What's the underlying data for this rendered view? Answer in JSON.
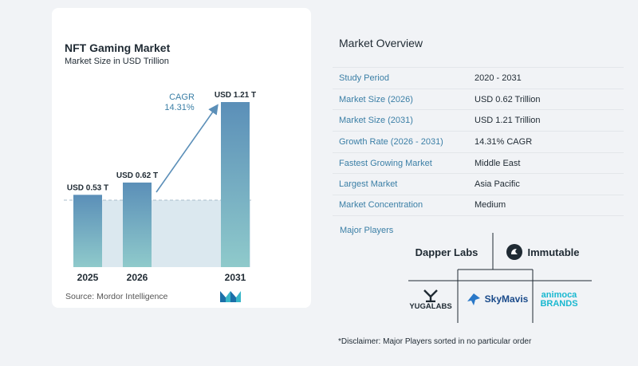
{
  "chart_data": {
    "type": "bar",
    "title": "NFT Gaming Market",
    "subtitle": "Market Size in USD Trillion",
    "categories": [
      "2025",
      "2026",
      "2031"
    ],
    "values": [
      0.53,
      0.62,
      1.21
    ],
    "data_labels": [
      "USD 0.53 T",
      "USD 0.62 T",
      "USD 1.21 T"
    ],
    "cagr_label": "CAGR",
    "cagr_value": "14.31%",
    "xlabel": "",
    "ylabel": "",
    "ylim": [
      0,
      1.21
    ],
    "grid": false,
    "colors": {
      "bar_top": "#5b8fb8",
      "bar_bottom": "#8fcacb",
      "baseline_fill": "#dbe8ef",
      "arrow": "#5b8fb8",
      "cagr_text": "#3b7fa6"
    }
  },
  "source": "Source:  Mordor Intelligence",
  "overview": {
    "title": "Market Overview",
    "rows": [
      {
        "label": "Study Period",
        "value": "2020 - 2031"
      },
      {
        "label": "Market Size (2026)",
        "value": "USD 0.62 Trillion"
      },
      {
        "label": "Market Size (2031)",
        "value": "USD 1.21 Trillion"
      },
      {
        "label": "Growth Rate (2026 - 2031)",
        "value": "14.31% CAGR"
      },
      {
        "label": "Fastest Growing Market",
        "value": "Middle East"
      },
      {
        "label": "Largest Market",
        "value": "Asia Pacific"
      },
      {
        "label": "Market Concentration",
        "value": "Medium"
      }
    ]
  },
  "players": {
    "title": "Major Players",
    "dapper": "Dapper Labs",
    "immutable": "Immutable",
    "yuga": "YUGALABS",
    "skymavis": "SkyMavis",
    "animoca_line1": "animoca",
    "animoca_line2": "BRANDS"
  },
  "disclaimer": "*Disclaimer: Major Players sorted in no particular order"
}
